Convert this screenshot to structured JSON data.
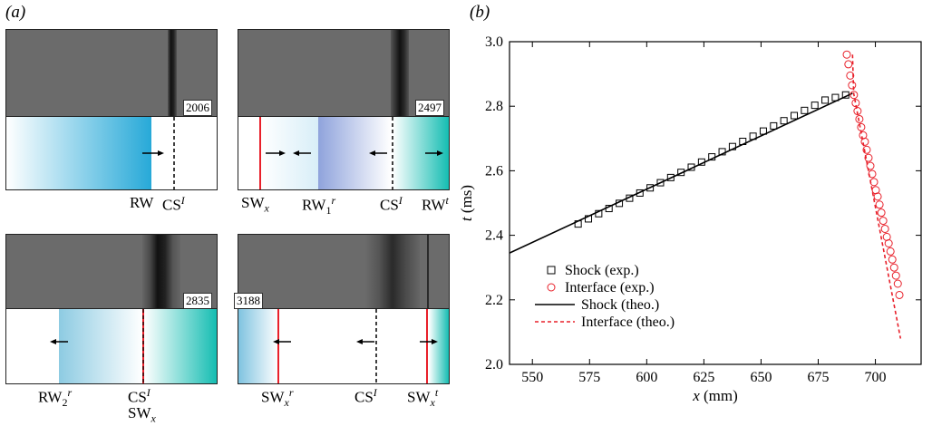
{
  "panel_a": {
    "label": "(a)",
    "frames": [
      {
        "number": "2006",
        "labels": [
          "RW",
          "CS"
        ],
        "label_sups": [
          "",
          "I"
        ]
      },
      {
        "number": "2497",
        "labels": [
          "SW",
          "RW",
          "CS",
          "RW"
        ],
        "label_subs": [
          "x",
          "1",
          "",
          ""
        ],
        "label_sups": [
          "",
          "r",
          "I",
          "t"
        ]
      },
      {
        "number": "2835",
        "labels": [
          "RW",
          "CS",
          "SW"
        ],
        "label_subs": [
          "2",
          "",
          "x"
        ],
        "label_sups": [
          "r",
          "I",
          ""
        ]
      },
      {
        "number": "3188",
        "labels": [
          "SW",
          "CS",
          "SW"
        ],
        "label_subs": [
          "x",
          "",
          "x"
        ],
        "label_sups": [
          "r",
          "I",
          "t"
        ]
      }
    ]
  },
  "panel_b": {
    "label": "(b)"
  },
  "chart_data": {
    "type": "scatter",
    "xlabel": "x (mm)",
    "ylabel": "t (ms)",
    "xlim": [
      540,
      720
    ],
    "ylim": [
      2.0,
      3.0
    ],
    "xticks": [
      550,
      575,
      600,
      625,
      650,
      675,
      700
    ],
    "yticks": [
      2.0,
      2.2,
      2.4,
      2.6,
      2.8,
      3.0
    ],
    "grid": false,
    "legend_position": "lower-left",
    "series": [
      {
        "name": "Shock (exp.)",
        "kind": "marker-square",
        "color": "#000000",
        "x": [
          570,
          574.5,
          579,
          583.5,
          588,
          592.5,
          597,
          601.5,
          606,
          610.5,
          615,
          619.5,
          624,
          628.5,
          633,
          637.5,
          642,
          646.5,
          651,
          655.5,
          660,
          664.5,
          669,
          673.5,
          678,
          682.5,
          687
        ],
        "y": [
          2.435,
          2.451,
          2.467,
          2.483,
          2.499,
          2.515,
          2.531,
          2.547,
          2.563,
          2.579,
          2.595,
          2.611,
          2.627,
          2.643,
          2.659,
          2.675,
          2.691,
          2.707,
          2.723,
          2.739,
          2.755,
          2.771,
          2.787,
          2.803,
          2.819,
          2.827,
          2.835
        ]
      },
      {
        "name": "Interface (exp.)",
        "kind": "marker-circle",
        "color": "#e8202a",
        "x": [
          687.5,
          688.2,
          689,
          689.8,
          690.6,
          691.4,
          692.2,
          693,
          693.8,
          694.6,
          695.4,
          696.2,
          697,
          697.8,
          698.6,
          699.4,
          700.2,
          701,
          701.8,
          702.6,
          703.4,
          704.2,
          705,
          705.8,
          706.6,
          707.4,
          708.2,
          709,
          709.8,
          710.5
        ],
        "y": [
          2.96,
          2.93,
          2.895,
          2.865,
          2.835,
          2.81,
          2.785,
          2.76,
          2.735,
          2.71,
          2.69,
          2.665,
          2.64,
          2.615,
          2.59,
          2.565,
          2.54,
          2.52,
          2.495,
          2.47,
          2.445,
          2.42,
          2.395,
          2.375,
          2.35,
          2.325,
          2.3,
          2.275,
          2.25,
          2.215
        ]
      },
      {
        "name": "Shock (theo.)",
        "kind": "line-solid",
        "color": "#000000",
        "x": [
          540,
          690
        ],
        "y": [
          2.345,
          2.84
        ]
      },
      {
        "name": "Interface (theo.)",
        "kind": "line-dashed",
        "color": "#e8202a",
        "x": [
          690,
          690.5,
          711
        ],
        "y": [
          2.96,
          2.84,
          2.08
        ]
      }
    ]
  }
}
